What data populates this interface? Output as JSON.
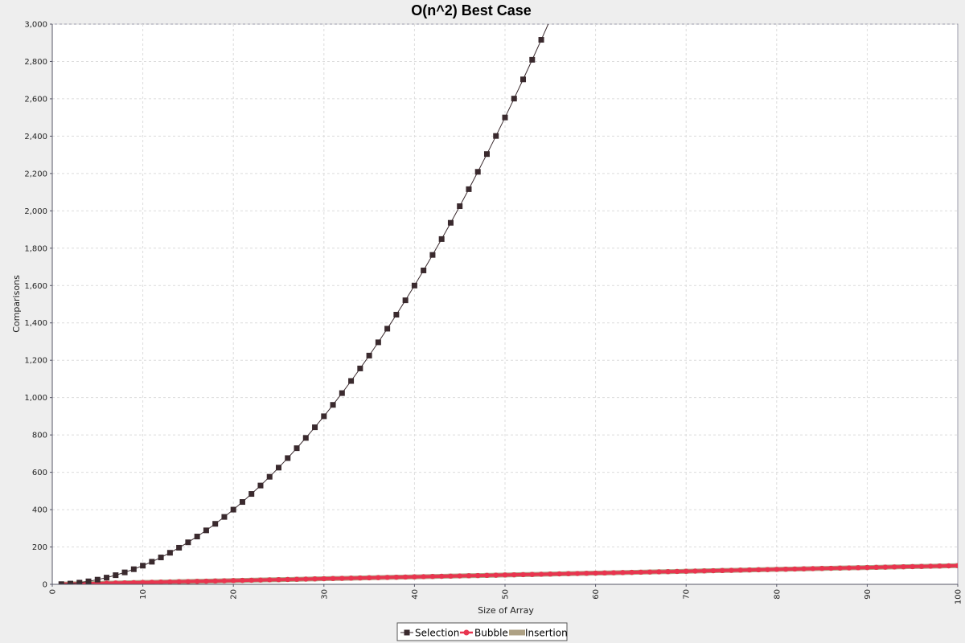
{
  "chart_data": {
    "type": "line",
    "title": "O(n^2) Best Case",
    "xlabel": "Size of Array",
    "ylabel": "Comparisons",
    "xlim": [
      0,
      100
    ],
    "ylim": [
      0,
      3000
    ],
    "x_ticks": [
      "0",
      "10",
      "20",
      "30",
      "40",
      "50",
      "60",
      "70",
      "80",
      "90",
      "100"
    ],
    "y_ticks": [
      "0",
      "200",
      "400",
      "600",
      "800",
      "1,000",
      "1,200",
      "1,400",
      "1,600",
      "1,800",
      "2,000",
      "2,200",
      "2,400",
      "2,600",
      "2,800",
      "3,000"
    ],
    "grid": true,
    "legend_position": "bottom",
    "series": [
      {
        "name": "Selection",
        "color": "#3a2a2e",
        "marker": "square",
        "x_start": 1,
        "x_end": 54,
        "x_step": 1,
        "values": [
          1,
          4,
          9,
          16,
          25,
          36,
          49,
          64,
          81,
          100,
          121,
          144,
          169,
          196,
          225,
          256,
          289,
          324,
          361,
          400,
          441,
          484,
          529,
          576,
          625,
          676,
          729,
          784,
          841,
          900,
          961,
          1024,
          1089,
          1156,
          1225,
          1296,
          1369,
          1444,
          1521,
          1600,
          1681,
          1764,
          1849,
          1936,
          2025,
          2116,
          2209,
          2304,
          2401,
          2500,
          2601,
          2704,
          2809,
          2916
        ]
      },
      {
        "name": "Bubble",
        "color": "#e8354f",
        "marker": "circle",
        "x_start": 1,
        "x_end": 100,
        "x_step": 1,
        "values": [
          1,
          2,
          3,
          4,
          5,
          6,
          7,
          8,
          9,
          10,
          11,
          12,
          13,
          14,
          15,
          16,
          17,
          18,
          19,
          20,
          21,
          22,
          23,
          24,
          25,
          26,
          27,
          28,
          29,
          30,
          31,
          32,
          33,
          34,
          35,
          36,
          37,
          38,
          39,
          40,
          41,
          42,
          43,
          44,
          45,
          46,
          47,
          48,
          49,
          50,
          51,
          52,
          53,
          54,
          55,
          56,
          57,
          58,
          59,
          60,
          61,
          62,
          63,
          64,
          65,
          66,
          67,
          68,
          69,
          70,
          71,
          72,
          73,
          74,
          75,
          76,
          77,
          78,
          79,
          80,
          81,
          82,
          83,
          84,
          85,
          86,
          87,
          88,
          89,
          90,
          91,
          92,
          93,
          94,
          95,
          96,
          97,
          98,
          99,
          100
        ]
      },
      {
        "name": "Insertion",
        "color": "#aea184",
        "marker": "rect",
        "x_start": 1,
        "x_end": 100,
        "x_step": 1,
        "values": [
          1,
          2,
          3,
          4,
          5,
          6,
          7,
          8,
          9,
          10,
          11,
          12,
          13,
          14,
          15,
          16,
          17,
          18,
          19,
          20,
          21,
          22,
          23,
          24,
          25,
          26,
          27,
          28,
          29,
          30,
          31,
          32,
          33,
          34,
          35,
          36,
          37,
          38,
          39,
          40,
          41,
          42,
          43,
          44,
          45,
          46,
          47,
          48,
          49,
          50,
          51,
          52,
          53,
          54,
          55,
          56,
          57,
          58,
          59,
          60,
          61,
          62,
          63,
          64,
          65,
          66,
          67,
          68,
          69,
          70,
          71,
          72,
          73,
          74,
          75,
          76,
          77,
          78,
          79,
          80,
          81,
          82,
          83,
          84,
          85,
          86,
          87,
          88,
          89,
          90,
          91,
          92,
          93,
          94,
          95,
          96,
          97,
          98,
          99,
          100
        ]
      }
    ]
  }
}
